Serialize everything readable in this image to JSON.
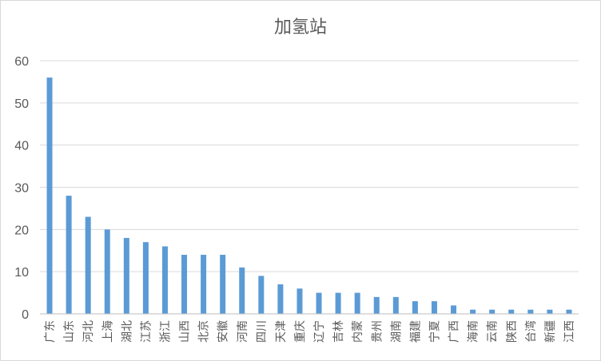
{
  "chart_data": {
    "type": "bar",
    "title": "加氢站",
    "xlabel": "",
    "ylabel": "",
    "ylim": [
      0,
      60
    ],
    "yticks": [
      0,
      10,
      20,
      30,
      40,
      50,
      60
    ],
    "grid": true,
    "legend": "none",
    "bar_color": "#5b9bd5",
    "categories": [
      "广东",
      "山东",
      "河北",
      "上海",
      "湖北",
      "江苏",
      "浙江",
      "山西",
      "北京",
      "安徽",
      "河南",
      "四川",
      "天津",
      "重庆",
      "辽宁",
      "吉林",
      "内蒙",
      "贵州",
      "湖南",
      "福建",
      "宁夏",
      "广西",
      "海南",
      "云南",
      "陕西",
      "台湾",
      "新疆",
      "江西"
    ],
    "values": [
      56,
      28,
      23,
      20,
      18,
      17,
      16,
      14,
      14,
      14,
      11,
      9,
      7,
      6,
      5,
      5,
      5,
      4,
      4,
      3,
      3,
      2,
      1,
      1,
      1,
      1,
      1,
      1
    ]
  }
}
